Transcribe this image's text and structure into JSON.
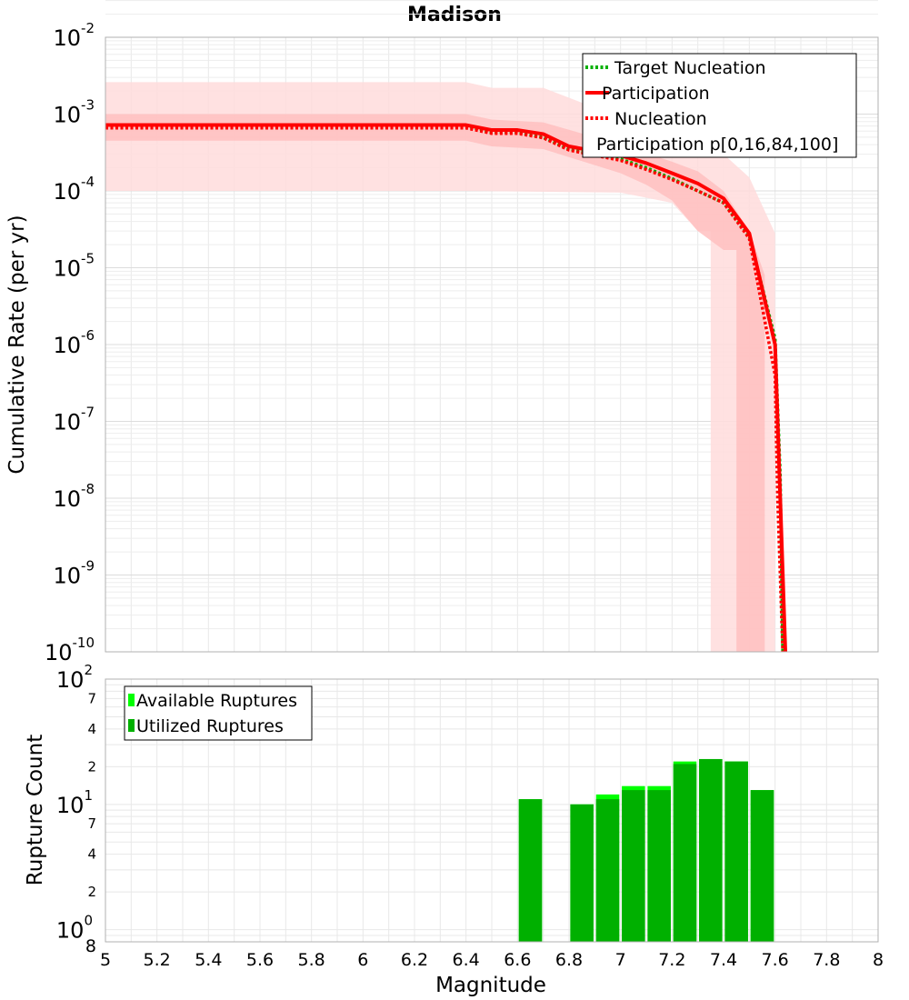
{
  "title": "Madison",
  "chart_data": [
    {
      "type": "line",
      "ylabel": "Cumulative Rate (per yr)",
      "yscale": "log",
      "ylim": [
        1e-10,
        0.01
      ],
      "xlim": [
        5,
        8
      ],
      "grid": true,
      "legend_position": "top-right",
      "y_tick_labels": [
        {
          "base": "10",
          "exp": "-10"
        },
        {
          "base": "10",
          "exp": "-9"
        },
        {
          "base": "10",
          "exp": "-8"
        },
        {
          "base": "10",
          "exp": "-7"
        },
        {
          "base": "10",
          "exp": "-6"
        },
        {
          "base": "10",
          "exp": "-5"
        },
        {
          "base": "10",
          "exp": "-4"
        },
        {
          "base": "10",
          "exp": "-3"
        },
        {
          "base": "10",
          "exp": "-2"
        }
      ],
      "legend": [
        {
          "label": "Target Nucleation"
        },
        {
          "label": "Participation"
        },
        {
          "label": "Nucleation"
        },
        {
          "label": "Participation p[0,16,84,100]"
        }
      ],
      "colors": {
        "target_nucleation": "#00b000",
        "participation": "#ff0000",
        "nucleation": "#ff0000",
        "band_outer": "#ffdcdc",
        "band_inner": "#ffc0c0"
      },
      "series": [
        {
          "name": "Target Nucleation",
          "style": "dotted",
          "x": [
            5.0,
            6.4,
            6.5,
            6.6,
            6.7,
            6.8,
            6.9,
            7.0,
            7.1,
            7.2,
            7.3,
            7.4,
            7.5,
            7.6,
            7.62,
            7.63
          ],
          "y": [
            0.0007,
            0.0007,
            0.00058,
            0.00058,
            0.0005,
            0.00035,
            0.0003,
            0.00026,
            0.0002,
            0.000145,
            0.0001,
            7e-05,
            2.6e-05,
            1.2e-06,
            2e-08,
            1e-10
          ]
        },
        {
          "name": "Participation",
          "style": "solid",
          "x": [
            5.0,
            6.4,
            6.5,
            6.6,
            6.7,
            6.8,
            6.9,
            7.0,
            7.1,
            7.2,
            7.3,
            7.4,
            7.5,
            7.6,
            7.62,
            7.64
          ],
          "y": [
            0.00072,
            0.00072,
            0.00062,
            0.00062,
            0.00055,
            0.00038,
            0.00033,
            0.00029,
            0.00023,
            0.00017,
            0.000125,
            8e-05,
            2.8e-05,
            1e-06,
            1e-08,
            1e-10
          ]
        },
        {
          "name": "Nucleation",
          "style": "dotted",
          "x": [
            5.0,
            6.4,
            6.5,
            6.6,
            6.7,
            6.8,
            6.9,
            7.0,
            7.1,
            7.2,
            7.3,
            7.4,
            7.5,
            7.6,
            7.61,
            7.63
          ],
          "y": [
            0.00066,
            0.00066,
            0.00056,
            0.00056,
            0.00049,
            0.00034,
            0.00029,
            0.00025,
            0.00019,
            0.00014,
            0.0001,
            7e-05,
            2.4e-05,
            4e-07,
            1e-08,
            1e-10
          ]
        }
      ],
      "bands": [
        {
          "name": "p0-p100",
          "upper": {
            "x": [
              5.0,
              6.4,
              6.5,
              6.7,
              7.0,
              7.2,
              7.4,
              7.5,
              7.6,
              7.6
            ],
            "y": [
              0.0026,
              0.0026,
              0.0022,
              0.0022,
              0.0009,
              0.00055,
              0.0003,
              0.00015,
              2.8e-05,
              1e-10
            ]
          },
          "lower": {
            "x": [
              5.0,
              6.4,
              7.0,
              7.2,
              7.3,
              7.35,
              7.35
            ],
            "y": [
              0.0001,
              0.0001,
              9.5e-05,
              7e-05,
              3e-05,
              3e-05,
              1e-10
            ]
          }
        },
        {
          "name": "p16-p84",
          "upper": {
            "x": [
              5.0,
              6.4,
              6.5,
              6.7,
              7.0,
              7.2,
              7.3,
              7.4,
              7.5,
              7.56,
              7.56
            ],
            "y": [
              0.001,
              0.001,
              0.00085,
              0.00078,
              0.0004,
              0.00024,
              0.00018,
              0.0001,
              3e-05,
              8e-06,
              1e-10
            ]
          },
          "lower": {
            "x": [
              5.0,
              6.4,
              6.5,
              6.7,
              7.0,
              7.1,
              7.2,
              7.3,
              7.4,
              7.45,
              7.45
            ],
            "y": [
              0.00045,
              0.00045,
              0.00038,
              0.00035,
              0.00017,
              0.00012,
              7.5e-05,
              3e-05,
              1.7e-05,
              1.7e-05,
              1e-10
            ]
          }
        }
      ]
    },
    {
      "type": "bar",
      "ylabel": "Rupture Count",
      "xlabel": "Magnitude",
      "yscale": "log",
      "ylim": [
        0.8,
        100
      ],
      "xlim": [
        5,
        8
      ],
      "grid": true,
      "legend_position": "top-left",
      "x_ticks": [
        "5",
        "5.2",
        "5.4",
        "5.6",
        "5.8",
        "6",
        "6.2",
        "6.4",
        "6.6",
        "6.8",
        "7",
        "7.2",
        "7.4",
        "7.6",
        "7.8",
        "8"
      ],
      "y_major_ticks": [
        {
          "base": "10",
          "exp": "2"
        },
        {
          "base": "10",
          "exp": "1"
        },
        {
          "base": "10",
          "exp": "0"
        }
      ],
      "y_minor_ticks": [
        "7",
        "4",
        "2",
        "7",
        "4",
        "2",
        "8"
      ],
      "legend": [
        {
          "label": "Available Ruptures"
        },
        {
          "label": "Utilized Ruptures"
        }
      ],
      "colors": {
        "available": "#00ff00",
        "utilized": "#00b000"
      },
      "bar_width": 0.09,
      "bars": [
        {
          "x": 6.65,
          "available": 11,
          "utilized": 11
        },
        {
          "x": 6.85,
          "available": 10,
          "utilized": 10
        },
        {
          "x": 6.95,
          "available": 12,
          "utilized": 11
        },
        {
          "x": 7.05,
          "available": 14,
          "utilized": 13
        },
        {
          "x": 7.15,
          "available": 14,
          "utilized": 13
        },
        {
          "x": 7.25,
          "available": 22,
          "utilized": 21
        },
        {
          "x": 7.35,
          "available": 23,
          "utilized": 23
        },
        {
          "x": 7.45,
          "available": 22,
          "utilized": 22
        },
        {
          "x": 7.55,
          "available": 13,
          "utilized": 13
        }
      ]
    }
  ]
}
